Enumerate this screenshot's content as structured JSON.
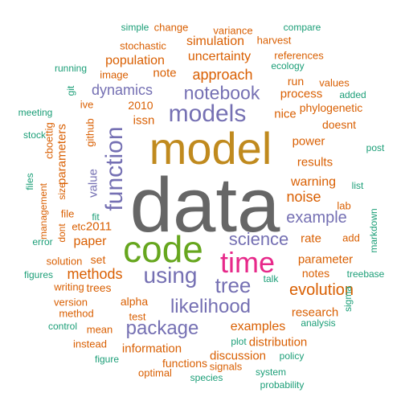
{
  "colors": {
    "teal": "#1b9e77",
    "orange": "#d95f02",
    "purple": "#7570b3",
    "magenta": "#e7298a",
    "green": "#66a61e",
    "gold": "#c08a1e",
    "gray": "#666666"
  },
  "words": [
    {
      "text": "data",
      "color": "gray"
    },
    {
      "text": "model",
      "color": "gold"
    },
    {
      "text": "code",
      "color": "green"
    },
    {
      "text": "time",
      "color": "magenta"
    },
    {
      "text": "function",
      "color": "purple"
    },
    {
      "text": "models",
      "color": "purple"
    },
    {
      "text": "using",
      "color": "purple"
    },
    {
      "text": "tree",
      "color": "purple"
    },
    {
      "text": "package",
      "color": "purple"
    },
    {
      "text": "likelihood",
      "color": "purple"
    },
    {
      "text": "notebook",
      "color": "purple"
    },
    {
      "text": "science",
      "color": "purple"
    },
    {
      "text": "example",
      "color": "purple"
    },
    {
      "text": "evolution",
      "color": "orange"
    },
    {
      "text": "approach",
      "color": "orange"
    },
    {
      "text": "dynamics",
      "color": "purple"
    },
    {
      "text": "methods",
      "color": "orange"
    },
    {
      "text": "noise",
      "color": "orange"
    },
    {
      "text": "warning",
      "color": "orange"
    },
    {
      "text": "examples",
      "color": "orange"
    },
    {
      "text": "uncertainty",
      "color": "orange"
    },
    {
      "text": "simulation",
      "color": "orange"
    },
    {
      "text": "population",
      "color": "orange"
    },
    {
      "text": "paper",
      "color": "orange"
    },
    {
      "text": "information",
      "color": "orange"
    },
    {
      "text": "parameter",
      "color": "orange"
    },
    {
      "text": "discussion",
      "color": "orange"
    },
    {
      "text": "research",
      "color": "orange"
    },
    {
      "text": "process",
      "color": "orange"
    },
    {
      "text": "results",
      "color": "orange"
    },
    {
      "text": "power",
      "color": "orange"
    },
    {
      "text": "rate",
      "color": "orange"
    },
    {
      "text": "distribution",
      "color": "orange"
    },
    {
      "text": "nice",
      "color": "orange"
    },
    {
      "text": "note",
      "color": "orange"
    },
    {
      "text": "issn",
      "color": "orange"
    },
    {
      "text": "2011",
      "color": "orange"
    },
    {
      "text": "2010",
      "color": "orange"
    },
    {
      "text": "value",
      "color": "purple"
    },
    {
      "text": "parameters",
      "color": "orange"
    },
    {
      "text": "github",
      "color": "orange"
    },
    {
      "text": "alpha",
      "color": "orange"
    },
    {
      "text": "trees",
      "color": "orange"
    },
    {
      "text": "set",
      "color": "orange"
    },
    {
      "text": "phylogenetic",
      "color": "orange"
    },
    {
      "text": "doesnt",
      "color": "orange"
    },
    {
      "text": "notes",
      "color": "orange"
    },
    {
      "text": "functions",
      "color": "orange"
    },
    {
      "text": "signals",
      "color": "orange"
    },
    {
      "text": "optimal",
      "color": "orange"
    },
    {
      "text": "run",
      "color": "orange"
    },
    {
      "text": "references",
      "color": "orange"
    },
    {
      "text": "stochastic",
      "color": "orange"
    },
    {
      "text": "change",
      "color": "orange"
    },
    {
      "text": "variance",
      "color": "orange"
    },
    {
      "text": "harvest",
      "color": "orange"
    },
    {
      "text": "values",
      "color": "orange"
    },
    {
      "text": "image",
      "color": "orange"
    },
    {
      "text": "ive",
      "color": "orange"
    },
    {
      "text": "etc",
      "color": "orange"
    },
    {
      "text": "file",
      "color": "orange"
    },
    {
      "text": "add",
      "color": "orange"
    },
    {
      "text": "solution",
      "color": "orange"
    },
    {
      "text": "writing",
      "color": "orange"
    },
    {
      "text": "version",
      "color": "orange"
    },
    {
      "text": "method",
      "color": "orange"
    },
    {
      "text": "mean",
      "color": "orange"
    },
    {
      "text": "instead",
      "color": "orange"
    },
    {
      "text": "test",
      "color": "orange"
    },
    {
      "text": "dont",
      "color": "orange"
    },
    {
      "text": "size",
      "color": "orange"
    },
    {
      "text": "management",
      "color": "orange"
    },
    {
      "text": "cboettig",
      "color": "orange"
    },
    {
      "text": "lab",
      "color": "orange"
    },
    {
      "text": "simple",
      "color": "teal"
    },
    {
      "text": "compare",
      "color": "teal"
    },
    {
      "text": "ecology",
      "color": "teal"
    },
    {
      "text": "running",
      "color": "teal"
    },
    {
      "text": "added",
      "color": "teal"
    },
    {
      "text": "meeting",
      "color": "teal"
    },
    {
      "text": "stock",
      "color": "teal"
    },
    {
      "text": "post",
      "color": "teal"
    },
    {
      "text": "list",
      "color": "teal"
    },
    {
      "text": "files",
      "color": "teal"
    },
    {
      "text": "git",
      "color": "teal"
    },
    {
      "text": "fit",
      "color": "teal"
    },
    {
      "text": "markdown",
      "color": "teal"
    },
    {
      "text": "error",
      "color": "teal"
    },
    {
      "text": "figures",
      "color": "teal"
    },
    {
      "text": "talk",
      "color": "teal"
    },
    {
      "text": "treebase",
      "color": "teal"
    },
    {
      "text": "sigma",
      "color": "teal"
    },
    {
      "text": "control",
      "color": "teal"
    },
    {
      "text": "analysis",
      "color": "teal"
    },
    {
      "text": "plot",
      "color": "teal"
    },
    {
      "text": "policy",
      "color": "teal"
    },
    {
      "text": "figure",
      "color": "teal"
    },
    {
      "text": "system",
      "color": "teal"
    },
    {
      "text": "species",
      "color": "teal"
    },
    {
      "text": "probability",
      "color": "teal"
    }
  ]
}
